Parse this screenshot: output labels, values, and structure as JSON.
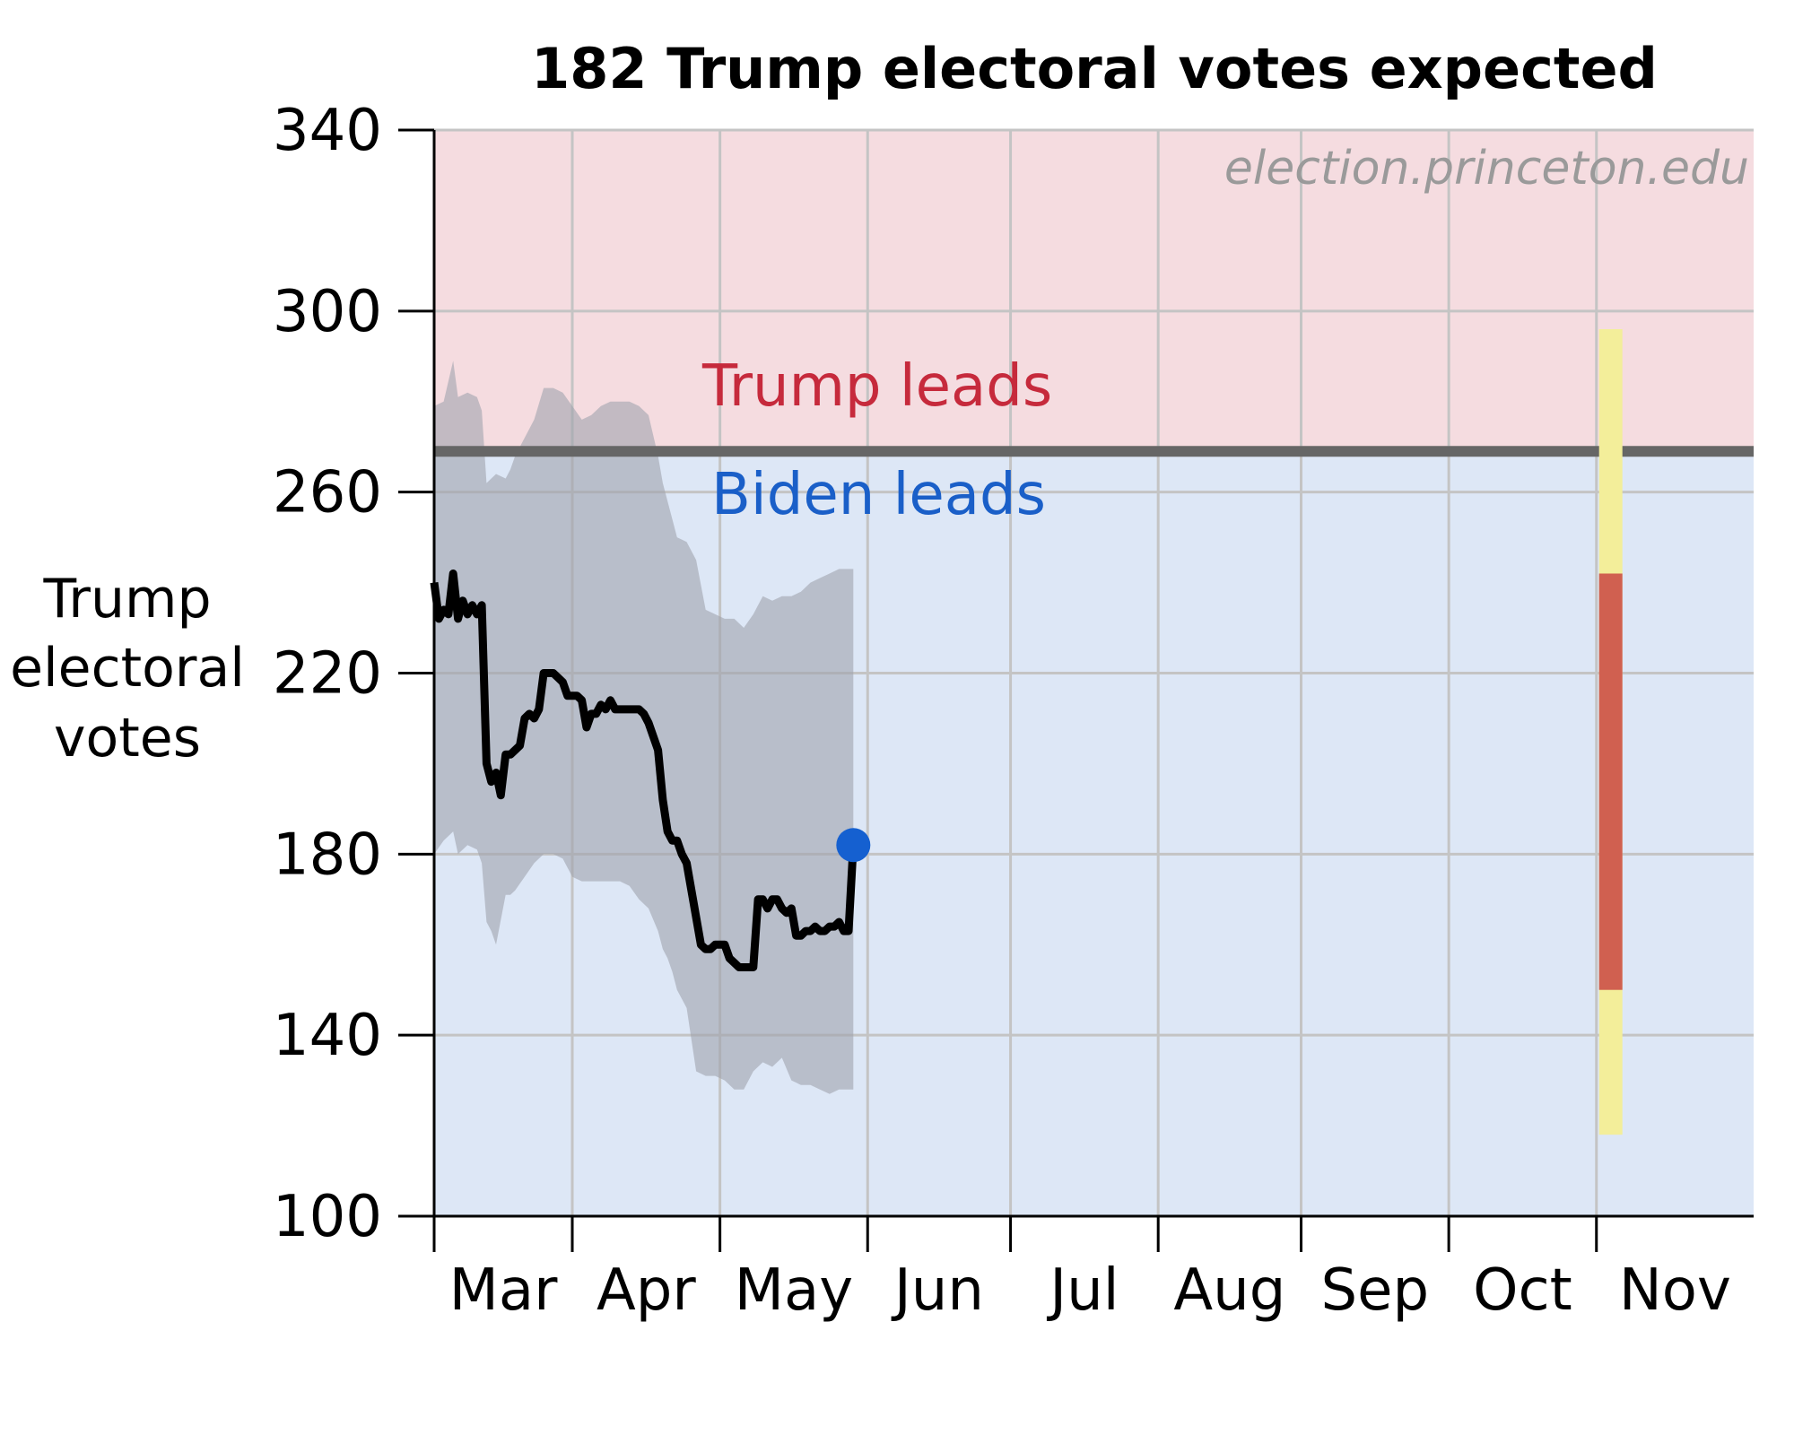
{
  "chart_data": {
    "type": "line",
    "title": "182 Trump electoral votes expected",
    "watermark": "election.princeton.edu",
    "ylabel": [
      "Trump",
      "electoral",
      "votes"
    ],
    "xlabel": "",
    "ylim": [
      100,
      340
    ],
    "yticks": [
      100,
      140,
      180,
      220,
      260,
      300,
      340
    ],
    "xlim_days": [
      0,
      277
    ],
    "x_ticks_days": [
      0,
      29,
      60,
      91,
      121,
      152,
      182,
      213,
      244
    ],
    "month_labels": [
      "Mar",
      "Apr",
      "May",
      "Jun",
      "Jul",
      "Aug",
      "Sep",
      "Oct",
      "Nov"
    ],
    "threshold": 269,
    "region_labels": {
      "above": "Trump leads",
      "below": "Biden leads"
    },
    "grid": true,
    "colors": {
      "trump_region": "#f5dce0",
      "biden_region": "#dde7f6",
      "threshold_line": "#666666",
      "band": "#a0a4ad",
      "median_line": "#000000",
      "current_dot": "#1560d0",
      "trump_text": "#c62a3c",
      "biden_text": "#1a5fc8",
      "watermark": "#9a9a9a",
      "forecast_outer": "#f3ee9a",
      "forecast_inner": "#d06050",
      "grid": "#c4c4c4"
    },
    "series": [
      {
        "x": [
          0,
          1,
          2,
          3,
          4,
          5,
          6,
          7,
          8,
          9,
          10,
          11,
          12,
          13,
          14,
          15,
          16,
          17,
          18,
          19,
          20,
          21,
          22,
          23,
          24,
          25,
          26,
          27,
          28,
          29,
          30,
          31,
          32,
          33,
          34,
          35,
          36,
          37,
          38,
          39,
          40,
          41,
          42,
          43,
          44,
          45,
          46,
          47,
          48,
          49,
          50,
          51,
          52,
          53,
          54,
          55,
          56,
          57,
          58,
          59,
          60,
          61,
          62,
          63,
          64,
          65,
          66,
          67,
          68,
          69,
          70,
          71,
          72,
          73,
          74,
          75,
          76,
          77,
          78,
          79,
          80,
          81,
          82,
          83,
          84,
          85,
          86,
          87,
          88
        ],
        "y": [
          240,
          232,
          234,
          233,
          242,
          232,
          236,
          233,
          235,
          233,
          235,
          200,
          196,
          198,
          193,
          202,
          202,
          203,
          204,
          210,
          211,
          210,
          212,
          220,
          220,
          220,
          219,
          218,
          215,
          215,
          215,
          214,
          208,
          211,
          211,
          213,
          212,
          214,
          212,
          212,
          212,
          212,
          212,
          212,
          211,
          209,
          206,
          203,
          192,
          185,
          183,
          183,
          180,
          178,
          172,
          166,
          160,
          159,
          159,
          160,
          160,
          160,
          157,
          156,
          155,
          155,
          155,
          155,
          170,
          170,
          168,
          170,
          170,
          168,
          167,
          168,
          162,
          162,
          163,
          163,
          164,
          163,
          163,
          164,
          164,
          165,
          163,
          163,
          182
        ]
      }
    ],
    "band": {
      "x": [
        0,
        2,
        4,
        5,
        7,
        9,
        10,
        11,
        12,
        13,
        15,
        16,
        17,
        19,
        21,
        23,
        25,
        27,
        29,
        31,
        33,
        35,
        37,
        39,
        41,
        43,
        45,
        47,
        48,
        49,
        50,
        51,
        53,
        55,
        57,
        59,
        61,
        63,
        65,
        67,
        69,
        71,
        73,
        75,
        77,
        79,
        81,
        83,
        85,
        88
      ],
      "lower": [
        180,
        183,
        185,
        180,
        182,
        181,
        178,
        165,
        163,
        160,
        171,
        171,
        172,
        175,
        178,
        180,
        180,
        179,
        175,
        174,
        174,
        174,
        174,
        174,
        173,
        170,
        168,
        163,
        159,
        157,
        154,
        150,
        146,
        132,
        131,
        131,
        130,
        128,
        128,
        132,
        134,
        133,
        135,
        130,
        129,
        129,
        128,
        127,
        128,
        128
      ],
      "upper": [
        279,
        280,
        289,
        281,
        282,
        281,
        278,
        262,
        263,
        264,
        263,
        265,
        268,
        272,
        276,
        283,
        283,
        282,
        279,
        276,
        277,
        279,
        280,
        280,
        280,
        279,
        277,
        268,
        262,
        258,
        254,
        250,
        249,
        245,
        234,
        233,
        232,
        232,
        230,
        233,
        237,
        236,
        237,
        237,
        238,
        240,
        241,
        242,
        243,
        243
      ]
    },
    "current_point": {
      "x": 88,
      "y": 182
    },
    "forecast_bar": {
      "x": 247,
      "outer": [
        118,
        296
      ],
      "inner": [
        150,
        242
      ]
    }
  }
}
